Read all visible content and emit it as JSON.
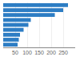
{
  "chart_data": {
    "type": "bar",
    "orientation": "horizontal",
    "categories": [
      null,
      null,
      null,
      null,
      null,
      null,
      null,
      null,
      null
    ],
    "values": [
      270,
      250,
      215,
      115,
      105,
      85,
      70,
      65,
      60
    ],
    "color": "#2d7dc4",
    "xlim": [
      0,
      300
    ],
    "xticks": [
      50,
      100,
      150,
      200,
      250
    ],
    "grid": true,
    "tick_labels": "x"
  }
}
